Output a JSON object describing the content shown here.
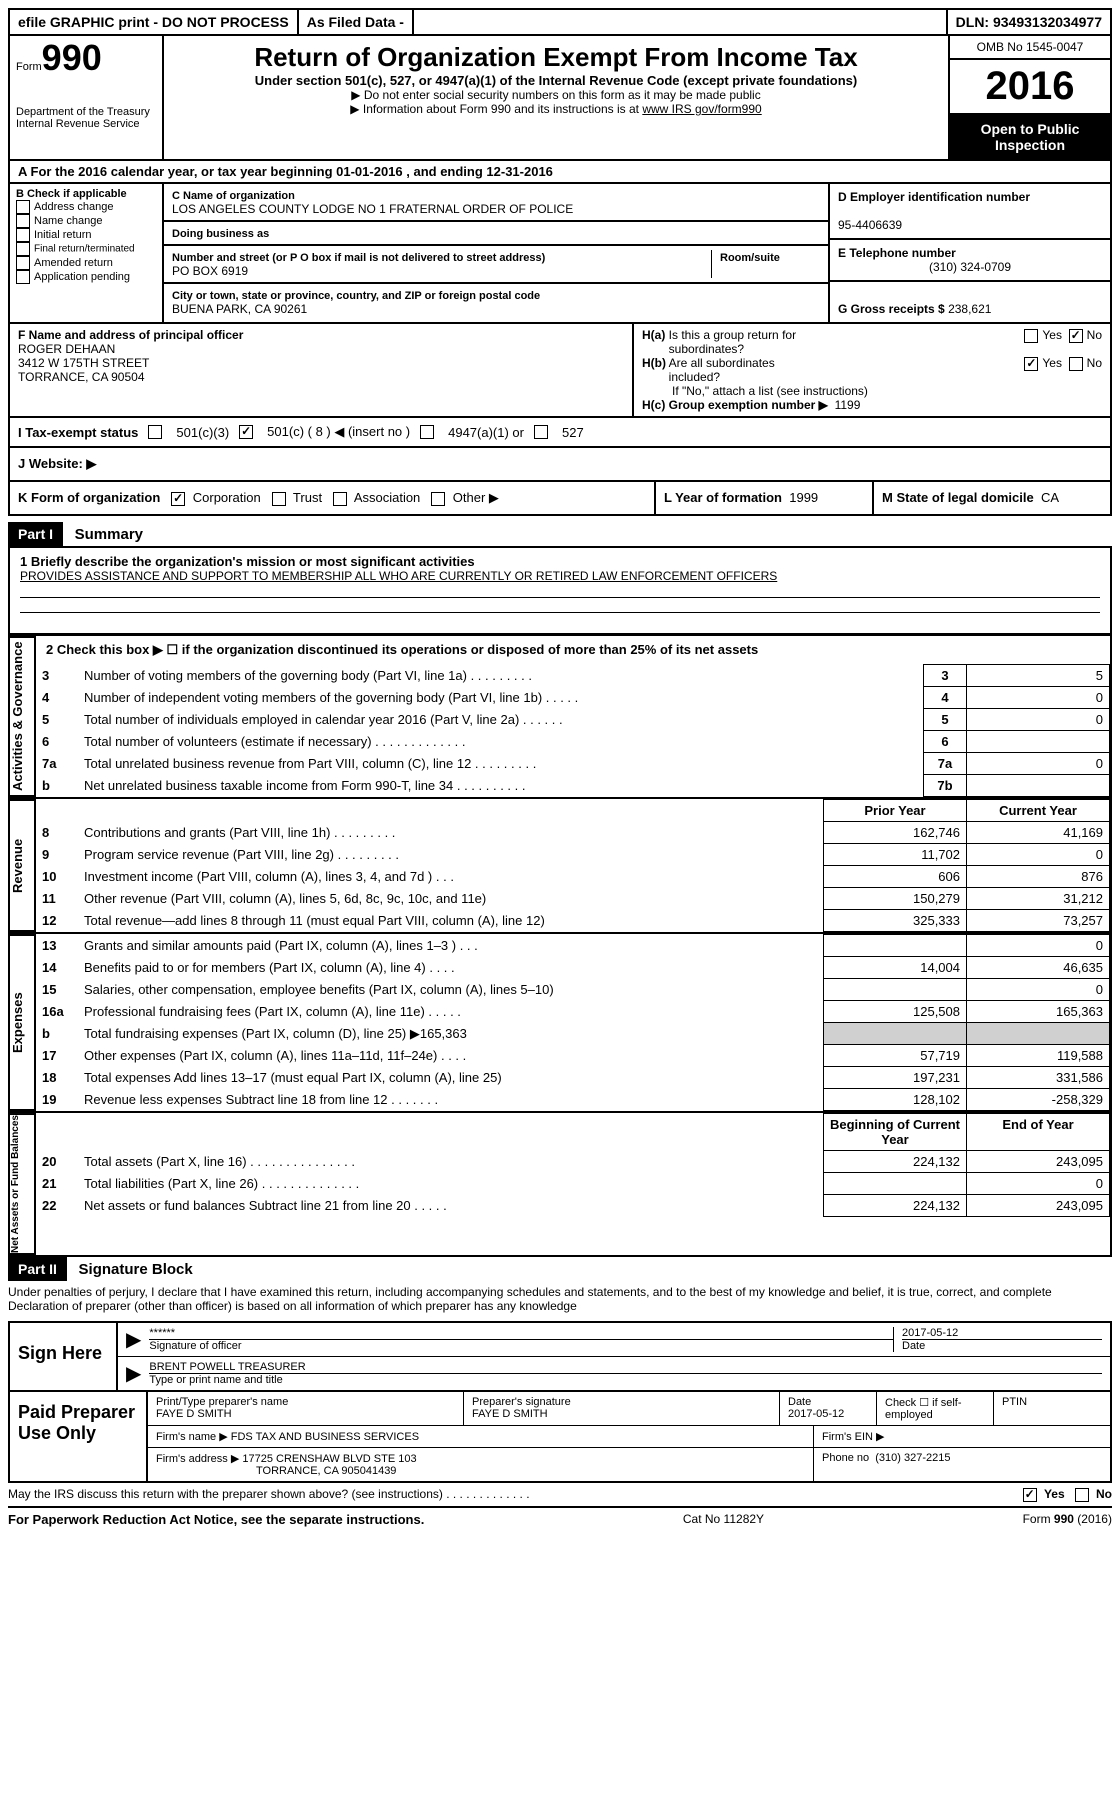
{
  "topbar": {
    "efile": "efile GRAPHIC print - DO NOT PROCESS",
    "asfiled": "As Filed Data -",
    "dln": "DLN: 93493132034977"
  },
  "header": {
    "form_prefix": "Form",
    "form_number": "990",
    "dept1": "Department of the Treasury",
    "dept2": "Internal Revenue Service",
    "title": "Return of Organization Exempt From Income Tax",
    "subtitle": "Under section 501(c), 527, or 4947(a)(1) of the Internal Revenue Code (except private foundations)",
    "note1": "▶ Do not enter social security numbers on this form as it may be made public",
    "note2_prefix": "▶ Information about Form 990 and its instructions is at ",
    "note2_link": "www IRS gov/form990",
    "omb": "OMB No  1545-0047",
    "year": "2016",
    "open_public": "Open to Public Inspection"
  },
  "section_a": "A  For the 2016 calendar year, or tax year beginning 01-01-2016   , and ending 12-31-2016",
  "col_b": {
    "title": "B Check if applicable",
    "items": [
      "Address change",
      "Name change",
      "Initial return",
      "Final return/terminated",
      "Amended return",
      "Application pending"
    ]
  },
  "col_c": {
    "name_label": "C Name of organization",
    "name": "LOS ANGELES COUNTY LODGE NO 1 FRATERNAL ORDER OF POLICE",
    "dba_label": "Doing business as",
    "addr_label": "Number and street (or P O  box if mail is not delivered to street address)",
    "room_label": "Room/suite",
    "addr": "PO BOX 6919",
    "city_label": "City or town, state or province, country, and ZIP or foreign postal code",
    "city": "BUENA PARK, CA  90261"
  },
  "col_d": {
    "ein_label": "D Employer identification number",
    "ein": "95-4406639",
    "phone_label": "E Telephone number",
    "phone": "(310) 324-0709",
    "gross_label": "G Gross receipts $",
    "gross": "238,621"
  },
  "officer": {
    "label": "F  Name and address of principal officer",
    "name": "ROGER DEHAAN",
    "addr1": "3412 W 175TH STREET",
    "addr2": "TORRANCE, CA  90504"
  },
  "h_section": {
    "ha": "H(a) Is this a group return for subordinates?",
    "ha_yes": "Yes",
    "ha_no": "No",
    "hb": "H(b) Are all subordinates included?",
    "hb_note": "If \"No,\" attach a list  (see instructions)",
    "hc": "H(c) Group exemption number ▶",
    "hc_val": "1199"
  },
  "status": {
    "label": "I  Tax-exempt status",
    "opt1": "501(c)(3)",
    "opt2": "501(c) ( 8 ) ◀ (insert no )",
    "opt3": "4947(a)(1) or",
    "opt4": "527"
  },
  "website": {
    "label": "J  Website: ▶"
  },
  "org": {
    "k_label": "K Form of organization",
    "k_opts": [
      "Corporation",
      "Trust",
      "Association",
      "Other ▶"
    ],
    "l_label": "L Year of formation",
    "l_val": "1999",
    "m_label": "M State of legal domicile",
    "m_val": "CA"
  },
  "part1": {
    "header": "Part I",
    "title": "Summary",
    "line1_label": "1 Briefly describe the organization's mission or most significant activities",
    "line1_text": "PROVIDES ASSISTANCE AND SUPPORT TO MEMBERSHIP ALL WHO ARE CURRENTLY OR RETIRED LAW ENFORCEMENT OFFICERS",
    "line2": "2   Check this box ▶ ☐ if the organization discontinued its operations or disposed of more than 25% of its net assets",
    "vertical_labels": {
      "gov": "Activities & Governance",
      "rev": "Revenue",
      "exp": "Expenses",
      "net": "Net Assets or Fund Balances"
    },
    "gov_rows": [
      {
        "n": "3",
        "desc": "Number of voting members of the governing body (Part VI, line 1a)  .    .    .    .    .    .    .    .    .",
        "box": "3",
        "val": "5"
      },
      {
        "n": "4",
        "desc": "Number of independent voting members of the governing body (Part VI, line 1b)  .    .    .    .    .",
        "box": "4",
        "val": "0"
      },
      {
        "n": "5",
        "desc": "Total number of individuals employed in calendar year 2016 (Part V, line 2a)  .    .    .    .    .    .",
        "box": "5",
        "val": "0"
      },
      {
        "n": "6",
        "desc": "Total number of volunteers (estimate if necessary)  .    .    .    .    .    .    .    .    .    .    .    .    .",
        "box": "6",
        "val": ""
      },
      {
        "n": "7a",
        "desc": "Total unrelated business revenue from Part VIII, column (C), line 12  .    .    .    .    .    .    .    .    .",
        "box": "7a",
        "val": "0"
      },
      {
        "n": "b",
        "desc": "Net unrelated business taxable income from Form 990-T, line 34  .    .    .    .    .    .    .    .    .    .",
        "box": "7b",
        "val": ""
      }
    ],
    "col_headers": {
      "prior": "Prior Year",
      "current": "Current Year"
    },
    "rev_rows": [
      {
        "n": "8",
        "desc": "Contributions and grants (Part VIII, line 1h)  .    .    .    .    .    .    .    .    .",
        "prior": "162,746",
        "current": "41,169"
      },
      {
        "n": "9",
        "desc": "Program service revenue (Part VIII, line 2g)  .    .    .    .    .    .    .    .    .",
        "prior": "11,702",
        "current": "0"
      },
      {
        "n": "10",
        "desc": "Investment income (Part VIII, column (A), lines 3, 4, and 7d )  .    .    .",
        "prior": "606",
        "current": "876"
      },
      {
        "n": "11",
        "desc": "Other revenue (Part VIII, column (A), lines 5, 6d, 8c, 9c, 10c, and 11e)",
        "prior": "150,279",
        "current": "31,212"
      },
      {
        "n": "12",
        "desc": "Total revenue—add lines 8 through 11 (must equal Part VIII, column (A), line 12)",
        "prior": "325,333",
        "current": "73,257"
      }
    ],
    "exp_rows": [
      {
        "n": "13",
        "desc": "Grants and similar amounts paid (Part IX, column (A), lines 1–3 )  .    .    .",
        "prior": "",
        "current": "0"
      },
      {
        "n": "14",
        "desc": "Benefits paid to or for members (Part IX, column (A), line 4)  .    .    .    .",
        "prior": "14,004",
        "current": "46,635"
      },
      {
        "n": "15",
        "desc": "Salaries, other compensation, employee benefits (Part IX, column (A), lines 5–10)",
        "prior": "",
        "current": "0"
      },
      {
        "n": "16a",
        "desc": "Professional fundraising fees (Part IX, column (A), line 11e)  .    .    .    .    .",
        "prior": "125,508",
        "current": "165,363"
      },
      {
        "n": "b",
        "desc": "Total fundraising expenses (Part IX, column (D), line 25) ▶165,363",
        "prior": "SHADE",
        "current": "SHADE"
      },
      {
        "n": "17",
        "desc": "Other expenses (Part IX, column (A), lines 11a–11d, 11f–24e)  .    .    .    .",
        "prior": "57,719",
        "current": "119,588"
      },
      {
        "n": "18",
        "desc": "Total expenses  Add lines 13–17 (must equal Part IX, column (A), line 25)",
        "prior": "197,231",
        "current": "331,586"
      },
      {
        "n": "19",
        "desc": "Revenue less expenses  Subtract line 18 from line 12  .    .    .    .    .    .    .",
        "prior": "128,102",
        "current": "-258,329"
      }
    ],
    "net_headers": {
      "begin": "Beginning of Current Year",
      "end": "End of Year"
    },
    "net_rows": [
      {
        "n": "20",
        "desc": "Total assets (Part X, line 16)  .    .    .    .    .    .    .    .    .    .    .    .    .    .    .",
        "prior": "224,132",
        "current": "243,095"
      },
      {
        "n": "21",
        "desc": "Total liabilities (Part X, line 26)  .    .    .    .    .    .    .    .    .    .    .    .    .    .",
        "prior": "",
        "current": "0"
      },
      {
        "n": "22",
        "desc": "Net assets or fund balances  Subtract line 21 from line 20  .    .    .    .    .",
        "prior": "224,132",
        "current": "243,095"
      }
    ]
  },
  "part2": {
    "header": "Part II",
    "title": "Signature Block",
    "penalty": "Under penalties of perjury, I declare that I have examined this return, including accompanying schedules and statements, and to the best of my knowledge and belief, it is true, correct, and complete  Declaration of preparer (other than officer) is based on all information of which preparer has any knowledge",
    "sign_here": "Sign Here",
    "stars": "******",
    "sig_label": "Signature of officer",
    "sig_date": "2017-05-12",
    "date_label": "Date",
    "name": "BRENT POWELL TREASURER",
    "name_label": "Type or print name and title",
    "paid_prep": "Paid Preparer Use Only",
    "prep_name_label": "Print/Type preparer's name",
    "prep_name": "FAYE D SMITH",
    "prep_sig_label": "Preparer's signature",
    "prep_sig": "FAYE D SMITH",
    "prep_date_label": "Date",
    "prep_date": "2017-05-12",
    "check_label": "Check ☐ if self-employed",
    "ptin_label": "PTIN",
    "firm_name_label": "Firm's name      ▶",
    "firm_name": "FDS TAX AND BUSINESS SERVICES",
    "firm_ein_label": "Firm's EIN ▶",
    "firm_addr_label": "Firm's address ▶",
    "firm_addr": "17725 CRENSHAW BLVD STE 103",
    "firm_addr2": "TORRANCE, CA  905041439",
    "firm_phone_label": "Phone no",
    "firm_phone": "(310) 327-2215",
    "discuss": "May the IRS discuss this return with the preparer shown above? (see instructions)  .     .     .     .     .     .     .     .     .     .     .     .     .",
    "disc_yes": "Yes",
    "disc_no": "No"
  },
  "footer": {
    "pra": "For Paperwork Reduction Act Notice, see the separate instructions.",
    "cat": "Cat  No  11282Y",
    "form": "Form 990 (2016)"
  }
}
